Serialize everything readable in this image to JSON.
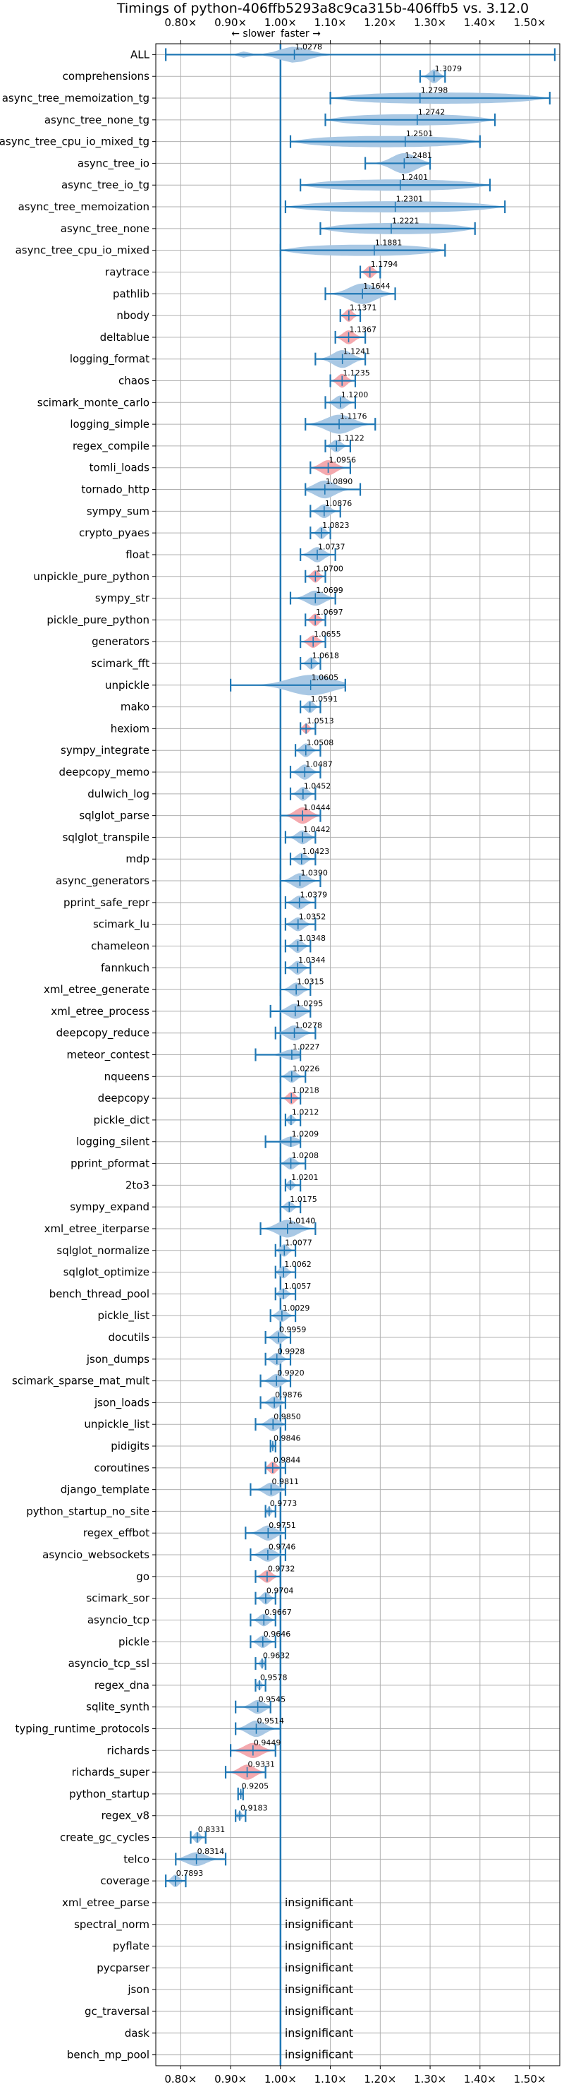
{
  "chart_data": {
    "type": "violin",
    "title": "Timings of python-406ffb5293a8c9ca315b-406ffb5 vs. 3.12.0",
    "slower_hint": "← slower",
    "faster_hint": "faster →",
    "xlim": [
      0.75,
      1.56
    ],
    "x_ticks": [
      0.8,
      0.9,
      1.0,
      1.1,
      1.2,
      1.3,
      1.4,
      1.5
    ],
    "x_tick_labels": [
      "0.80×",
      "0.90×",
      "1.00×",
      "1.10×",
      "1.20×",
      "1.30×",
      "1.40×",
      "1.50×"
    ],
    "insignificant_label": "insignificant",
    "colors": {
      "blue": "#1f77b4",
      "violin_blue": "#a9c8e4",
      "violin_red": "#f4a9ae",
      "grid": "#b0b0b0"
    },
    "benchmarks": [
      {
        "name": "ALL",
        "value": 1.0278,
        "label": "1.0278",
        "min": 0.77,
        "max": 1.55,
        "width": 0.08,
        "color": "blue",
        "shape": "all"
      },
      {
        "name": "comprehensions",
        "value": 1.3079,
        "label": "1.3079",
        "min": 1.28,
        "max": 1.33,
        "width": 0.025,
        "color": "blue"
      },
      {
        "name": "async_tree_memoization_tg",
        "value": 1.2798,
        "label": "1.2798",
        "min": 1.1,
        "max": 1.54,
        "width": 0.2,
        "color": "blue",
        "shape": "spread"
      },
      {
        "name": "async_tree_none_tg",
        "value": 1.2742,
        "label": "1.2742",
        "min": 1.09,
        "max": 1.43,
        "width": 0.15,
        "color": "blue",
        "shape": "spread"
      },
      {
        "name": "async_tree_cpu_io_mixed_tg",
        "value": 1.2501,
        "label": "1.2501",
        "min": 1.02,
        "max": 1.4,
        "width": 0.17,
        "color": "blue",
        "shape": "spread"
      },
      {
        "name": "async_tree_io",
        "value": 1.2481,
        "label": "1.2481",
        "min": 1.17,
        "max": 1.3,
        "width": 0.05,
        "color": "blue"
      },
      {
        "name": "async_tree_io_tg",
        "value": 1.2401,
        "label": "1.2401",
        "min": 1.04,
        "max": 1.42,
        "width": 0.17,
        "color": "blue",
        "shape": "spread"
      },
      {
        "name": "async_tree_memoization",
        "value": 1.2301,
        "label": "1.2301",
        "min": 1.01,
        "max": 1.45,
        "width": 0.2,
        "color": "blue",
        "shape": "spread"
      },
      {
        "name": "async_tree_none",
        "value": 1.2221,
        "label": "1.2221",
        "min": 1.08,
        "max": 1.39,
        "width": 0.14,
        "color": "blue",
        "shape": "spread"
      },
      {
        "name": "async_tree_cpu_io_mixed",
        "value": 1.1881,
        "label": "1.1881",
        "min": 1.0,
        "max": 1.33,
        "width": 0.15,
        "color": "blue",
        "shape": "spread"
      },
      {
        "name": "raytrace",
        "value": 1.1794,
        "label": "1.1794",
        "min": 1.16,
        "max": 1.2,
        "width": 0.02,
        "color": "red"
      },
      {
        "name": "pathlib",
        "value": 1.1644,
        "label": "1.1644",
        "min": 1.09,
        "max": 1.23,
        "width": 0.06,
        "color": "blue"
      },
      {
        "name": "nbody",
        "value": 1.1371,
        "label": "1.1371",
        "min": 1.12,
        "max": 1.16,
        "width": 0.02,
        "color": "red"
      },
      {
        "name": "deltablue",
        "value": 1.1367,
        "label": "1.1367",
        "min": 1.11,
        "max": 1.17,
        "width": 0.025,
        "color": "red"
      },
      {
        "name": "logging_format",
        "value": 1.1241,
        "label": "1.1241",
        "min": 1.07,
        "max": 1.17,
        "width": 0.04,
        "color": "blue"
      },
      {
        "name": "chaos",
        "value": 1.1235,
        "label": "1.1235",
        "min": 1.1,
        "max": 1.15,
        "width": 0.025,
        "color": "red"
      },
      {
        "name": "scimark_monte_carlo",
        "value": 1.12,
        "label": "1.1200",
        "min": 1.09,
        "max": 1.15,
        "width": 0.025,
        "color": "blue"
      },
      {
        "name": "logging_simple",
        "value": 1.1176,
        "label": "1.1176",
        "min": 1.05,
        "max": 1.19,
        "width": 0.045,
        "color": "blue"
      },
      {
        "name": "regex_compile",
        "value": 1.1122,
        "label": "1.1122",
        "min": 1.09,
        "max": 1.14,
        "width": 0.02,
        "color": "blue"
      },
      {
        "name": "tomli_loads",
        "value": 1.0956,
        "label": "1.0956",
        "min": 1.06,
        "max": 1.14,
        "width": 0.03,
        "color": "red"
      },
      {
        "name": "tornado_http",
        "value": 1.089,
        "label": "1.0890",
        "min": 1.05,
        "max": 1.16,
        "width": 0.04,
        "color": "blue"
      },
      {
        "name": "sympy_sum",
        "value": 1.0876,
        "label": "1.0876",
        "min": 1.06,
        "max": 1.12,
        "width": 0.025,
        "color": "blue"
      },
      {
        "name": "crypto_pyaes",
        "value": 1.0823,
        "label": "1.0823",
        "min": 1.06,
        "max": 1.1,
        "width": 0.02,
        "color": "blue"
      },
      {
        "name": "float",
        "value": 1.0737,
        "label": "1.0737",
        "min": 1.04,
        "max": 1.11,
        "width": 0.03,
        "color": "blue"
      },
      {
        "name": "unpickle_pure_python",
        "value": 1.07,
        "label": "1.0700",
        "min": 1.05,
        "max": 1.09,
        "width": 0.02,
        "color": "red"
      },
      {
        "name": "sympy_str",
        "value": 1.0699,
        "label": "1.0699",
        "min": 1.02,
        "max": 1.11,
        "width": 0.03,
        "color": "blue"
      },
      {
        "name": "pickle_pure_python",
        "value": 1.0697,
        "label": "1.0697",
        "min": 1.05,
        "max": 1.09,
        "width": 0.02,
        "color": "red"
      },
      {
        "name": "generators",
        "value": 1.0655,
        "label": "1.0655",
        "min": 1.04,
        "max": 1.09,
        "width": 0.02,
        "color": "red"
      },
      {
        "name": "scimark_fft",
        "value": 1.0618,
        "label": "1.0618",
        "min": 1.04,
        "max": 1.08,
        "width": 0.02,
        "color": "blue"
      },
      {
        "name": "unpickle",
        "value": 1.0605,
        "label": "1.0605",
        "min": 0.9,
        "max": 1.13,
        "width": 0.05,
        "color": "blue"
      },
      {
        "name": "mako",
        "value": 1.0591,
        "label": "1.0591",
        "min": 1.04,
        "max": 1.08,
        "width": 0.02,
        "color": "blue"
      },
      {
        "name": "hexiom",
        "value": 1.0513,
        "label": "1.0513",
        "min": 1.04,
        "max": 1.07,
        "width": 0.012,
        "color": "red"
      },
      {
        "name": "sympy_integrate",
        "value": 1.0508,
        "label": "1.0508",
        "min": 1.03,
        "max": 1.08,
        "width": 0.025,
        "color": "blue"
      },
      {
        "name": "deepcopy_memo",
        "value": 1.0487,
        "label": "1.0487",
        "min": 1.02,
        "max": 1.08,
        "width": 0.03,
        "color": "blue"
      },
      {
        "name": "dulwich_log",
        "value": 1.0452,
        "label": "1.0452",
        "min": 1.02,
        "max": 1.07,
        "width": 0.025,
        "color": "blue"
      },
      {
        "name": "sqlglot_parse",
        "value": 1.0444,
        "label": "1.0444",
        "min": 1.0,
        "max": 1.08,
        "width": 0.035,
        "color": "red"
      },
      {
        "name": "sqlglot_transpile",
        "value": 1.0442,
        "label": "1.0442",
        "min": 1.01,
        "max": 1.07,
        "width": 0.025,
        "color": "blue"
      },
      {
        "name": "mdp",
        "value": 1.0423,
        "label": "1.0423",
        "min": 1.02,
        "max": 1.07,
        "width": 0.02,
        "color": "blue"
      },
      {
        "name": "async_generators",
        "value": 1.039,
        "label": "1.0390",
        "min": 1.0,
        "max": 1.08,
        "width": 0.03,
        "color": "blue"
      },
      {
        "name": "pprint_safe_repr",
        "value": 1.0379,
        "label": "1.0379",
        "min": 1.01,
        "max": 1.07,
        "width": 0.025,
        "color": "blue"
      },
      {
        "name": "scimark_lu",
        "value": 1.0352,
        "label": "1.0352",
        "min": 1.01,
        "max": 1.07,
        "width": 0.025,
        "color": "blue"
      },
      {
        "name": "chameleon",
        "value": 1.0348,
        "label": "1.0348",
        "min": 1.01,
        "max": 1.06,
        "width": 0.025,
        "color": "blue"
      },
      {
        "name": "fannkuch",
        "value": 1.0344,
        "label": "1.0344",
        "min": 1.01,
        "max": 1.06,
        "width": 0.025,
        "color": "blue"
      },
      {
        "name": "xml_etree_generate",
        "value": 1.0315,
        "label": "1.0315",
        "min": 1.0,
        "max": 1.06,
        "width": 0.025,
        "color": "blue"
      },
      {
        "name": "xml_etree_process",
        "value": 1.0295,
        "label": "1.0295",
        "min": 0.98,
        "max": 1.06,
        "width": 0.03,
        "color": "blue"
      },
      {
        "name": "deepcopy_reduce",
        "value": 1.0278,
        "label": "1.0278",
        "min": 0.99,
        "max": 1.07,
        "width": 0.03,
        "color": "blue"
      },
      {
        "name": "meteor_contest",
        "value": 1.0227,
        "label": "1.0227",
        "min": 0.95,
        "max": 1.04,
        "width": 0.012,
        "color": "blue"
      },
      {
        "name": "nqueens",
        "value": 1.0226,
        "label": "1.0226",
        "min": 1.0,
        "max": 1.05,
        "width": 0.02,
        "color": "blue"
      },
      {
        "name": "deepcopy",
        "value": 1.0218,
        "label": "1.0218",
        "min": 1.0,
        "max": 1.04,
        "width": 0.02,
        "color": "red"
      },
      {
        "name": "pickle_dict",
        "value": 1.0212,
        "label": "1.0212",
        "min": 1.01,
        "max": 1.04,
        "width": 0.012,
        "color": "blue"
      },
      {
        "name": "logging_silent",
        "value": 1.0209,
        "label": "1.0209",
        "min": 0.97,
        "max": 1.04,
        "width": 0.012,
        "color": "blue"
      },
      {
        "name": "pprint_pformat",
        "value": 1.0208,
        "label": "1.0208",
        "min": 1.0,
        "max": 1.05,
        "width": 0.02,
        "color": "blue"
      },
      {
        "name": "2to3",
        "value": 1.0201,
        "label": "1.0201",
        "min": 1.01,
        "max": 1.04,
        "width": 0.012,
        "color": "blue"
      },
      {
        "name": "sympy_expand",
        "value": 1.0175,
        "label": "1.0175",
        "min": 1.0,
        "max": 1.04,
        "width": 0.015,
        "color": "blue"
      },
      {
        "name": "xml_etree_iterparse",
        "value": 1.014,
        "label": "1.0140",
        "min": 0.96,
        "max": 1.07,
        "width": 0.04,
        "color": "blue"
      },
      {
        "name": "sqlglot_normalize",
        "value": 1.0077,
        "label": "1.0077",
        "min": 0.99,
        "max": 1.03,
        "width": 0.02,
        "color": "blue"
      },
      {
        "name": "sqlglot_optimize",
        "value": 1.0062,
        "label": "1.0062",
        "min": 0.99,
        "max": 1.03,
        "width": 0.02,
        "color": "blue"
      },
      {
        "name": "bench_thread_pool",
        "value": 1.0057,
        "label": "1.0057",
        "min": 0.99,
        "max": 1.03,
        "width": 0.015,
        "color": "blue"
      },
      {
        "name": "pickle_list",
        "value": 1.0029,
        "label": "1.0029",
        "min": 0.98,
        "max": 1.03,
        "width": 0.02,
        "color": "blue"
      },
      {
        "name": "docutils",
        "value": 0.9959,
        "label": "0.9959",
        "min": 0.97,
        "max": 1.02,
        "width": 0.025,
        "color": "blue"
      },
      {
        "name": "json_dumps",
        "value": 0.9928,
        "label": "0.9928",
        "min": 0.97,
        "max": 1.02,
        "width": 0.02,
        "color": "blue"
      },
      {
        "name": "scimark_sparse_mat_mult",
        "value": 0.992,
        "label": "0.9920",
        "min": 0.96,
        "max": 1.02,
        "width": 0.025,
        "color": "blue"
      },
      {
        "name": "json_loads",
        "value": 0.9876,
        "label": "0.9876",
        "min": 0.96,
        "max": 1.01,
        "width": 0.02,
        "color": "blue"
      },
      {
        "name": "unpickle_list",
        "value": 0.985,
        "label": "0.9850",
        "min": 0.95,
        "max": 1.01,
        "width": 0.025,
        "color": "blue"
      },
      {
        "name": "pidigits",
        "value": 0.9846,
        "label": "0.9846",
        "min": 0.98,
        "max": 0.99,
        "width": 0.005,
        "color": "blue"
      },
      {
        "name": "coroutines",
        "value": 0.9844,
        "label": "0.9844",
        "min": 0.97,
        "max": 1.01,
        "width": 0.02,
        "color": "red"
      },
      {
        "name": "django_template",
        "value": 0.9811,
        "label": "0.9811",
        "min": 0.94,
        "max": 1.01,
        "width": 0.025,
        "color": "blue"
      },
      {
        "name": "python_startup_no_site",
        "value": 0.9773,
        "label": "0.9773",
        "min": 0.97,
        "max": 0.99,
        "width": 0.008,
        "color": "blue"
      },
      {
        "name": "regex_effbot",
        "value": 0.9751,
        "label": "0.9751",
        "min": 0.93,
        "max": 1.01,
        "width": 0.03,
        "color": "blue"
      },
      {
        "name": "asyncio_websockets",
        "value": 0.9746,
        "label": "0.9746",
        "min": 0.94,
        "max": 1.01,
        "width": 0.025,
        "color": "blue"
      },
      {
        "name": "go",
        "value": 0.9732,
        "label": "0.9732",
        "min": 0.95,
        "max": 1.0,
        "width": 0.02,
        "color": "red"
      },
      {
        "name": "scimark_sor",
        "value": 0.9704,
        "label": "0.9704",
        "min": 0.95,
        "max": 0.99,
        "width": 0.02,
        "color": "blue"
      },
      {
        "name": "asyncio_tcp",
        "value": 0.9667,
        "label": "0.9667",
        "min": 0.94,
        "max": 0.99,
        "width": 0.02,
        "color": "blue"
      },
      {
        "name": "pickle",
        "value": 0.9646,
        "label": "0.9646",
        "min": 0.94,
        "max": 0.99,
        "width": 0.02,
        "color": "blue"
      },
      {
        "name": "asyncio_tcp_ssl",
        "value": 0.9632,
        "label": "0.9632",
        "min": 0.95,
        "max": 0.97,
        "width": 0.008,
        "color": "blue"
      },
      {
        "name": "regex_dna",
        "value": 0.9578,
        "label": "0.9578",
        "min": 0.95,
        "max": 0.97,
        "width": 0.01,
        "color": "blue"
      },
      {
        "name": "sqlite_synth",
        "value": 0.9545,
        "label": "0.9545",
        "min": 0.91,
        "max": 0.98,
        "width": 0.025,
        "color": "blue"
      },
      {
        "name": "typing_runtime_protocols",
        "value": 0.9514,
        "label": "0.9514",
        "min": 0.91,
        "max": 1.0,
        "width": 0.035,
        "color": "blue"
      },
      {
        "name": "richards",
        "value": 0.9449,
        "label": "0.9449",
        "min": 0.9,
        "max": 0.99,
        "width": 0.03,
        "color": "red"
      },
      {
        "name": "richards_super",
        "value": 0.9331,
        "label": "0.9331",
        "min": 0.89,
        "max": 0.97,
        "width": 0.03,
        "color": "red"
      },
      {
        "name": "python_startup",
        "value": 0.9205,
        "label": "0.9205",
        "min": 0.915,
        "max": 0.925,
        "width": 0.006,
        "color": "blue"
      },
      {
        "name": "regex_v8",
        "value": 0.9183,
        "label": "0.9183",
        "min": 0.91,
        "max": 0.93,
        "width": 0.008,
        "color": "blue"
      },
      {
        "name": "create_gc_cycles",
        "value": 0.8331,
        "label": "0.8331",
        "min": 0.82,
        "max": 0.85,
        "width": 0.015,
        "color": "blue"
      },
      {
        "name": "telco",
        "value": 0.8314,
        "label": "0.8314",
        "min": 0.79,
        "max": 0.89,
        "width": 0.025,
        "color": "blue"
      },
      {
        "name": "coverage",
        "value": 0.7893,
        "label": "0.7893",
        "min": 0.77,
        "max": 0.81,
        "width": 0.02,
        "color": "blue"
      },
      {
        "name": "xml_etree_parse",
        "insignificant": true
      },
      {
        "name": "spectral_norm",
        "insignificant": true
      },
      {
        "name": "pyflate",
        "insignificant": true
      },
      {
        "name": "pycparser",
        "insignificant": true
      },
      {
        "name": "json",
        "insignificant": true
      },
      {
        "name": "gc_traversal",
        "insignificant": true
      },
      {
        "name": "dask",
        "insignificant": true
      },
      {
        "name": "bench_mp_pool",
        "insignificant": true
      }
    ]
  }
}
